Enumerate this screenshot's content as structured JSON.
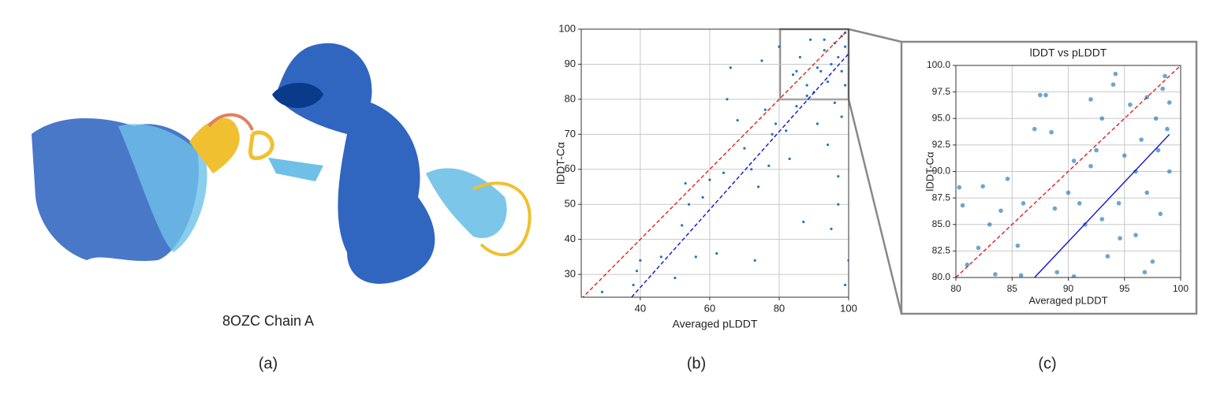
{
  "figure": {
    "structure_caption": "8OZC Chain A",
    "panel_labels": [
      "(a)",
      "(b)",
      "(c)"
    ]
  },
  "chart_data": [
    {
      "type": "scatter",
      "xlabel": "Averaged pLDDT",
      "ylabel": "lDDT-Cα",
      "xlim": [
        23,
        100
      ],
      "ylim": [
        23.5,
        100
      ],
      "xticks": [
        40,
        60,
        80,
        100
      ],
      "yticks": [
        30,
        40,
        50,
        60,
        70,
        80,
        90,
        100
      ],
      "grid": true,
      "series": [
        {
          "type": "scatter",
          "color": "#1f77b4",
          "x": [
            29,
            38,
            40,
            39,
            50,
            52,
            53,
            54,
            56,
            58,
            60,
            62,
            64,
            66,
            68,
            70,
            72,
            74,
            75,
            76,
            77,
            78,
            80,
            82,
            83,
            84,
            85,
            86,
            87,
            88,
            89,
            90,
            91,
            92,
            93,
            94,
            94,
            95,
            95,
            96,
            96,
            97,
            97,
            98,
            98,
            98,
            99,
            99,
            99,
            100,
            99,
            97,
            93,
            91,
            88,
            85,
            79,
            73,
            65,
            46
          ],
          "values": [
            25,
            27,
            34,
            31,
            29,
            44,
            56,
            50,
            35,
            52,
            57,
            36,
            59,
            89,
            74,
            66,
            60,
            55,
            91,
            77,
            61,
            70,
            95,
            71,
            63,
            87,
            78,
            92,
            45,
            84,
            97,
            82,
            73,
            88,
            94,
            67,
            85,
            90,
            43,
            96,
            79,
            92,
            58,
            98,
            88,
            75,
            95,
            99,
            84,
            34,
            27,
            50,
            97,
            89,
            81,
            88,
            73,
            34,
            80,
            35
          ]
        },
        {
          "type": "line",
          "color": "#e02020",
          "dash": true,
          "x": [
            23,
            100
          ],
          "values": [
            23,
            100
          ]
        },
        {
          "type": "line",
          "color": "#1010d0",
          "dash": true,
          "x": [
            37.5,
            100
          ],
          "values": [
            23.5,
            93
          ]
        }
      ]
    },
    {
      "type": "scatter",
      "title": "lDDT vs pLDDT",
      "xlabel": "Averaged pLDDT",
      "ylabel": "lDDT-Cα",
      "xlim": [
        80,
        100
      ],
      "ylim": [
        80,
        100
      ],
      "xticks": [
        80,
        85,
        90,
        95,
        100
      ],
      "yticks": [
        {
          "value": 80,
          "label": "80.0"
        },
        {
          "value": 82.5,
          "label": "82.5"
        },
        {
          "value": 85,
          "label": "85.0"
        },
        {
          "value": 87.5,
          "label": "87.5"
        },
        {
          "value": 90,
          "label": "90.0"
        },
        {
          "value": 92.5,
          "label": "92.5"
        },
        {
          "value": 95,
          "label": "95.0"
        },
        {
          "value": 97.5,
          "label": "97.5"
        },
        {
          "value": 100,
          "label": "100.0"
        }
      ],
      "grid": true,
      "series": [
        {
          "type": "scatter",
          "color": "#1f77b4",
          "x": [
            80.3,
            80.6,
            81,
            82,
            82.4,
            83,
            83.5,
            84,
            84.6,
            85.5,
            86,
            87,
            87.5,
            88,
            88.5,
            88.8,
            89,
            90,
            90.5,
            91,
            91.5,
            92,
            92.5,
            93,
            93.5,
            94,
            94.2,
            94.5,
            95,
            95.5,
            96,
            96,
            96.5,
            97,
            97,
            97.5,
            97.8,
            98,
            98.2,
            98.4,
            98.6,
            98.8,
            99,
            99,
            85.8,
            90.5,
            93,
            94.6,
            96.8,
            92
          ],
          "values": [
            88.5,
            86.8,
            81.2,
            82.8,
            88.6,
            85,
            80.3,
            86.3,
            89.3,
            83,
            87,
            94,
            97.2,
            97.2,
            93.7,
            86.5,
            80.5,
            88,
            91,
            87,
            85,
            90.5,
            92,
            95,
            82,
            98.2,
            99.2,
            87,
            91.5,
            96.3,
            84,
            90,
            93,
            97,
            88,
            81.5,
            95,
            92,
            86,
            97.8,
            99,
            94,
            96.5,
            90,
            80.2,
            80.1,
            85.5,
            83.7,
            80.5,
            96.8
          ]
        },
        {
          "type": "line",
          "color": "#e02020",
          "dash": true,
          "x": [
            80,
            100
          ],
          "values": [
            80,
            100
          ]
        },
        {
          "type": "line",
          "color": "#1010d0",
          "dash": false,
          "x": [
            87,
            99
          ],
          "values": [
            80,
            93.5
          ]
        }
      ]
    }
  ]
}
